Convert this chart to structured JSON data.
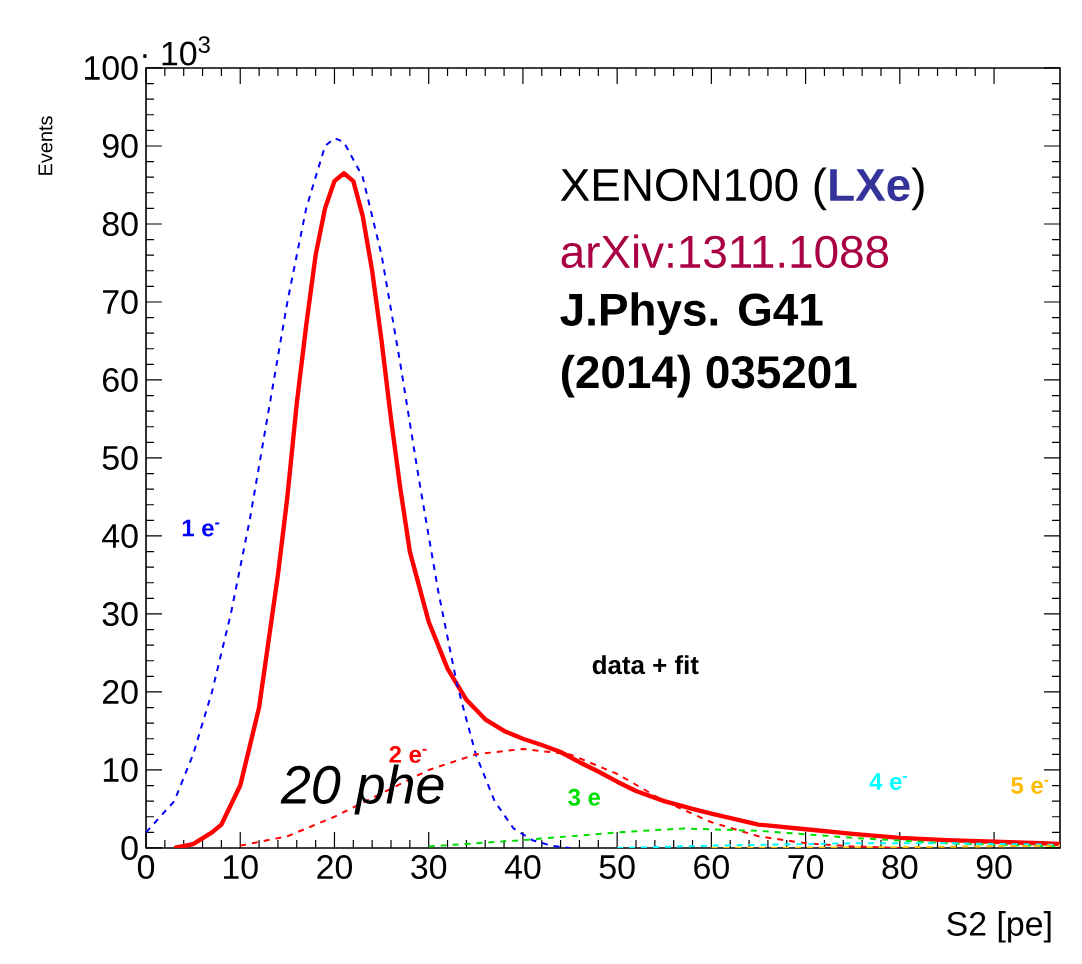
{
  "chart_data": {
    "type": "line",
    "xlabel": "S2 [pe]",
    "ylabel": "Events",
    "xlim": [
      0,
      97
    ],
    "ylim": [
      0,
      100
    ],
    "xticks": [
      0,
      10,
      20,
      30,
      40,
      50,
      60,
      70,
      80,
      90
    ],
    "yticks": [
      0,
      10,
      20,
      30,
      40,
      50,
      60,
      70,
      80,
      90,
      100
    ],
    "grid": false,
    "legend": false,
    "marker": "none",
    "annotations": [
      "· 10$^{3}$",
      "XENON100 (**LXe**)",
      "arXiv:1311.1088",
      "J.Phys. G41",
      "(2014) 035201",
      "data + fit",
      "20 phe"
    ],
    "series": [
      {
        "color": "#ff0000",
        "line_style": "solid",
        "x": [
          3,
          5,
          7,
          8,
          10,
          12,
          14,
          15,
          16,
          17,
          18,
          19,
          20,
          21,
          22,
          23,
          24,
          25,
          26,
          27,
          28,
          30,
          32,
          34,
          36,
          38,
          40,
          42,
          44,
          46,
          48,
          50,
          52,
          55,
          58,
          60,
          65,
          70,
          75,
          80,
          85,
          90,
          95,
          97
        ],
        "values": [
          0,
          0.5,
          2,
          3,
          8,
          18,
          35,
          45,
          57,
          67,
          76,
          82,
          85.5,
          86.5,
          85.5,
          81,
          74,
          65,
          55,
          46,
          38,
          29,
          23,
          19,
          16.5,
          15,
          14,
          13.2,
          12.3,
          11,
          9.8,
          8.5,
          7.3,
          6,
          5,
          4.4,
          3,
          2.4,
          1.8,
          1.3,
          1,
          0.8,
          0.6,
          0.5
        ]
      },
      {
        "name": "1 e$^{-}$",
        "color": "#0000ff",
        "line_style": "dashed",
        "x": [
          0,
          3,
          5,
          7,
          9,
          11,
          13,
          15,
          17,
          19,
          20,
          21,
          23,
          25,
          27,
          29,
          31,
          33,
          35,
          37,
          39,
          41,
          43,
          45
        ],
        "values": [
          2,
          6,
          12,
          20,
          30,
          42,
          56,
          70,
          82,
          90,
          91,
          90.5,
          86,
          76,
          62,
          47,
          33,
          21,
          12,
          6,
          2.5,
          1,
          0.3,
          0
        ]
      },
      {
        "name": "2 e$^{-}$",
        "color": "#ff0000",
        "line_style": "dashed",
        "x": [
          10,
          15,
          20,
          25,
          30,
          35,
          40,
          45,
          50,
          55,
          60,
          65,
          70,
          75,
          80
        ],
        "values": [
          0.3,
          1.5,
          4,
          7,
          10,
          12,
          12.7,
          12,
          9.5,
          6,
          3.3,
          1.5,
          0.6,
          0.2,
          0
        ]
      },
      {
        "name": "3 e",
        "color": "#00dd00",
        "line_style": "dashed",
        "x": [
          30,
          40,
          50,
          57,
          65,
          75,
          85,
          97
        ],
        "values": [
          0.2,
          1,
          2,
          2.5,
          2.2,
          1.3,
          0.6,
          0.2
        ]
      },
      {
        "name": "4 e$^{-}$",
        "color": "#00ffff",
        "line_style": "dashed",
        "x": [
          50,
          60,
          75,
          85,
          97
        ],
        "values": [
          0,
          0.3,
          0.6,
          0.6,
          0.4
        ]
      },
      {
        "name": "5 e$^{-}$",
        "color": "#ffbb00",
        "line_style": "dashed",
        "x": [
          60,
          80,
          97
        ],
        "values": [
          0,
          0.1,
          0.3
        ]
      }
    ]
  }
}
